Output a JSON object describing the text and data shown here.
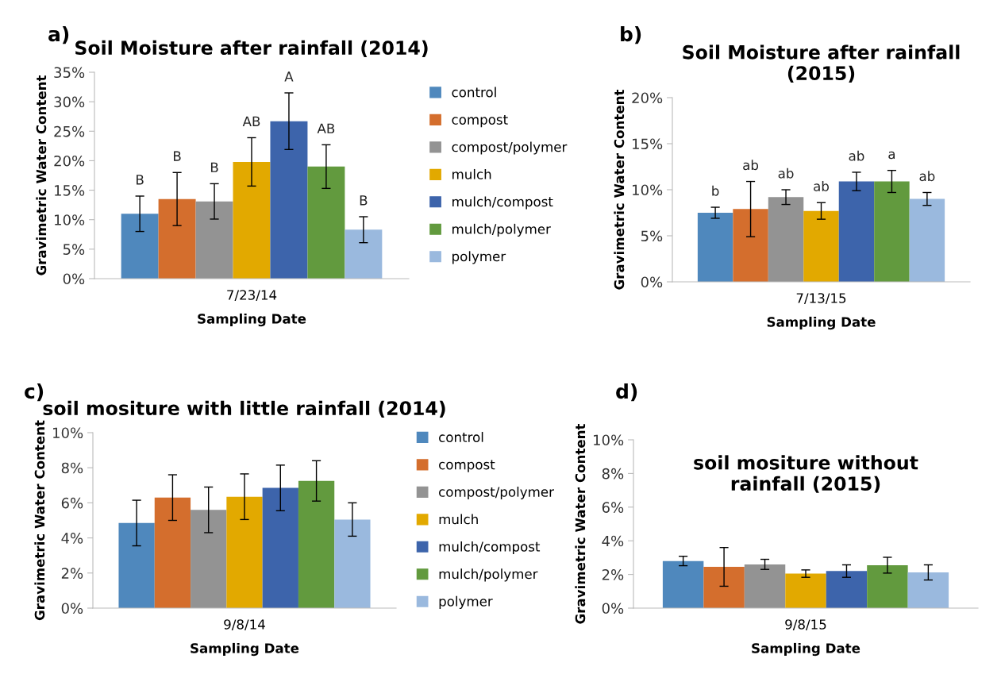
{
  "chart_data": [
    {
      "type": "bar",
      "title": "Soil Moisture after rainfall (2014)",
      "xlabel": "Sampling Date",
      "ylabel": "Gravimetric Water Content",
      "categories": [
        "7/23/14"
      ],
      "annotations": [
        "a)"
      ],
      "legend": "right",
      "grid": false,
      "ylim": [
        0,
        35
      ],
      "yticks": [
        {
          "value": 0,
          "label": "0%"
        },
        {
          "value": 5,
          "label": "5%"
        },
        {
          "value": 10,
          "label": "10%"
        },
        {
          "value": 15,
          "label": "15%"
        },
        {
          "value": 20,
          "label": "20%"
        },
        {
          "value": 25,
          "label": "25%"
        },
        {
          "value": 30,
          "label": "30%"
        },
        {
          "value": 35,
          "label": "35%"
        }
      ],
      "series": [
        {
          "name": "control",
          "color": "#4f88bd",
          "values": [
            11.0
          ],
          "errors": [
            3.0
          ],
          "value_labels": [
            "B"
          ]
        },
        {
          "name": "compost",
          "color": "#d46e2d",
          "values": [
            13.5
          ],
          "errors": [
            4.5
          ],
          "value_labels": [
            "B"
          ]
        },
        {
          "name": "compost/polymer",
          "color": "#939393",
          "values": [
            13.1
          ],
          "errors": [
            3.0
          ],
          "value_labels": [
            "B"
          ]
        },
        {
          "name": "mulch",
          "color": "#e2a900",
          "values": [
            19.8
          ],
          "errors": [
            4.1
          ],
          "value_labels": [
            "AB"
          ]
        },
        {
          "name": "mulch/compost",
          "color": "#3d64ab",
          "values": [
            26.7
          ],
          "errors": [
            4.8
          ],
          "value_labels": [
            "A"
          ]
        },
        {
          "name": "mulch/polymer",
          "color": "#629a3e",
          "values": [
            19.0
          ],
          "errors": [
            3.7
          ],
          "value_labels": [
            "AB"
          ]
        },
        {
          "name": "polymer",
          "color": "#9ab9de",
          "values": [
            8.3
          ],
          "errors": [
            2.2
          ],
          "value_labels": [
            "B"
          ]
        }
      ]
    },
    {
      "type": "bar",
      "title": "Soil Moisture after rainfall\n(2015)",
      "xlabel": "Sampling Date",
      "ylabel": "Gravimetric Water Content",
      "categories": [
        "7/13/15"
      ],
      "annotations": [
        "b)"
      ],
      "grid": false,
      "ylim": [
        0,
        20
      ],
      "yticks": [
        {
          "value": 0,
          "label": "0%"
        },
        {
          "value": 5,
          "label": "5%"
        },
        {
          "value": 10,
          "label": "10%"
        },
        {
          "value": 15,
          "label": "15%"
        },
        {
          "value": 20,
          "label": "20%"
        }
      ],
      "series": [
        {
          "color": "#4f88bd",
          "values": [
            7.5
          ],
          "errors": [
            0.6
          ],
          "value_labels": [
            "b"
          ]
        },
        {
          "color": "#d46e2d",
          "values": [
            7.9
          ],
          "errors": [
            3.0
          ],
          "value_labels": [
            "ab"
          ]
        },
        {
          "color": "#939393",
          "values": [
            9.2
          ],
          "errors": [
            0.8
          ],
          "value_labels": [
            "ab"
          ]
        },
        {
          "color": "#e2a900",
          "values": [
            7.7
          ],
          "errors": [
            0.9
          ],
          "value_labels": [
            "ab"
          ]
        },
        {
          "color": "#3d64ab",
          "values": [
            10.9
          ],
          "errors": [
            1.0
          ],
          "value_labels": [
            "ab"
          ]
        },
        {
          "color": "#629a3e",
          "values": [
            10.9
          ],
          "errors": [
            1.2
          ],
          "value_labels": [
            "a"
          ]
        },
        {
          "color": "#9ab9de",
          "values": [
            9.0
          ],
          "errors": [
            0.7
          ],
          "value_labels": [
            "ab"
          ]
        }
      ]
    },
    {
      "type": "bar",
      "title": "soil mositure with little rainfall (2014)",
      "xlabel": "Sampling Date",
      "ylabel": "Gravimetric Water Content",
      "categories": [
        "9/8/14"
      ],
      "annotations": [
        "c)"
      ],
      "legend": "right",
      "grid": false,
      "ylim": [
        0,
        10
      ],
      "yticks": [
        {
          "value": 0,
          "label": "0%"
        },
        {
          "value": 2,
          "label": "2%"
        },
        {
          "value": 4,
          "label": "4%"
        },
        {
          "value": 6,
          "label": "6%"
        },
        {
          "value": 8,
          "label": "8%"
        },
        {
          "value": 10,
          "label": "10%"
        }
      ],
      "series": [
        {
          "name": "control",
          "color": "#4f88bd",
          "values": [
            4.85
          ],
          "errors": [
            1.3
          ]
        },
        {
          "name": "compost",
          "color": "#d46e2d",
          "values": [
            6.3
          ],
          "errors": [
            1.3
          ]
        },
        {
          "name": "compost/polymer",
          "color": "#939393",
          "values": [
            5.6
          ],
          "errors": [
            1.3
          ]
        },
        {
          "name": "mulch",
          "color": "#e2a900",
          "values": [
            6.35
          ],
          "errors": [
            1.3
          ]
        },
        {
          "name": "mulch/compost",
          "color": "#3d64ab",
          "values": [
            6.85
          ],
          "errors": [
            1.3
          ]
        },
        {
          "name": "mulch/polymer",
          "color": "#629a3e",
          "values": [
            7.25
          ],
          "errors": [
            1.15
          ]
        },
        {
          "name": "polymer",
          "color": "#9ab9de",
          "values": [
            5.05
          ],
          "errors": [
            0.95
          ]
        }
      ]
    },
    {
      "type": "bar",
      "title": "soil mositure without\nrainfall (2015)",
      "xlabel": "Sampling Date",
      "ylabel": "Gravimetric Water Content",
      "categories": [
        "9/8/15"
      ],
      "annotations": [
        "d)"
      ],
      "grid": false,
      "ylim": [
        0,
        10
      ],
      "yticks": [
        {
          "value": 0,
          "label": "0%"
        },
        {
          "value": 2,
          "label": "2%"
        },
        {
          "value": 4,
          "label": "4%"
        },
        {
          "value": 6,
          "label": "6%"
        },
        {
          "value": 8,
          "label": "8%"
        },
        {
          "value": 10,
          "label": "10%"
        }
      ],
      "series": [
        {
          "color": "#4f88bd",
          "values": [
            2.8
          ],
          "errors": [
            0.28
          ]
        },
        {
          "color": "#d46e2d",
          "values": [
            2.45
          ],
          "errors": [
            1.15
          ]
        },
        {
          "color": "#939393",
          "values": [
            2.6
          ],
          "errors": [
            0.3
          ]
        },
        {
          "color": "#e2a900",
          "values": [
            2.05
          ],
          "errors": [
            0.22
          ]
        },
        {
          "color": "#3d64ab",
          "values": [
            2.2
          ],
          "errors": [
            0.37
          ]
        },
        {
          "color": "#629a3e",
          "values": [
            2.55
          ],
          "errors": [
            0.47
          ]
        },
        {
          "color": "#9ab9de",
          "values": [
            2.12
          ],
          "errors": [
            0.45
          ]
        }
      ]
    }
  ]
}
